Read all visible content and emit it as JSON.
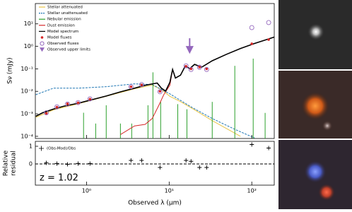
{
  "chart_data": [
    {
      "type": "line",
      "y_label": "Sν (mJy)",
      "xlim": [
        0.24,
        187
      ],
      "ylim": [
        8e-05,
        80
      ],
      "xscale": "log",
      "yscale": "log",
      "xticks": [
        1,
        10,
        100
      ],
      "yticks": [
        {
          "value": 0.0001,
          "label": "10⁻⁴"
        },
        {
          "value": 0.001,
          "label": "10⁻³"
        },
        {
          "value": 0.01,
          "label": "10⁻²"
        },
        {
          "value": 0.1,
          "label": "10⁻¹"
        },
        {
          "value": 1,
          "label": "10⁰"
        },
        {
          "value": 10,
          "label": "10¹"
        }
      ],
      "legend": "upper left",
      "series": [
        {
          "name": "Stellar attenuated",
          "color": "#e8c547",
          "style": "line",
          "x": [
            0.243,
            0.397,
            0.79,
            1.73,
            3.81,
            6.24,
            8.05,
            10.2,
            13.7,
            20.3,
            33.2,
            73.0
          ],
          "values": [
            0.0007,
            0.0015,
            0.0028,
            0.006,
            0.013,
            0.019,
            0.012,
            0.006,
            0.0035,
            0.0015,
            0.0005,
            0.0001
          ]
        },
        {
          "name": "Stellar unattenuated",
          "color": "#1f77b4",
          "style": "dashed",
          "x": [
            0.243,
            0.397,
            0.79,
            1.73,
            3.81,
            6.24,
            10.2,
            18.4,
            33.2,
            62.3,
            108
          ],
          "values": [
            0.0071,
            0.0138,
            0.0138,
            0.0161,
            0.0215,
            0.02,
            0.0077,
            0.00204,
            0.00062,
            0.000205,
            8.5e-05
          ]
        },
        {
          "name": "Nebular emission",
          "color": "#2ca02c",
          "style": "stem",
          "x": [
            0.92,
            1.29,
            1.73,
            2.57,
            3.52,
            5.54,
            6.36,
            7.89,
            12.7,
            16.4,
            33.2,
            62.3,
            104,
            145
          ],
          "values": [
            0.00112,
            0.00037,
            0.0024,
            0.00037,
            0.00037,
            0.0024,
            0.07,
            0.0034,
            0.0027,
            0.0016,
            0.0034,
            0.136,
            0.285,
            0.0011
          ]
        },
        {
          "name": "Dust emission",
          "color": "#d62728",
          "style": "line",
          "x": [
            2.57,
            3.81,
            5.12,
            6.24,
            7.5,
            8.6,
            10.2,
            11.0,
            11.9,
            13.7,
            15.7,
            17.7,
            20.3,
            24.7,
            33.2,
            49.2,
            73.0,
            108,
            188
          ],
          "values": [
            0.00012,
            0.00029,
            0.00034,
            0.00062,
            0.0024,
            0.0071,
            0.0186,
            0.094,
            0.039,
            0.052,
            0.136,
            0.102,
            0.158,
            0.118,
            0.229,
            0.44,
            0.8,
            1.34,
            2.6
          ]
        },
        {
          "name": "Model spectrum",
          "color": "#000000",
          "style": "line",
          "x": [
            0.243,
            0.295,
            0.397,
            0.532,
            0.79,
            1.17,
            1.73,
            2.57,
            3.81,
            5.12,
            6.24,
            7.16,
            8.05,
            9.06,
            10.2,
            11.0,
            11.9,
            13.7,
            15.7,
            17.7,
            20.3,
            24.7,
            33.2,
            49.2,
            73.0,
            108,
            188
          ],
          "values": [
            0.00078,
            0.00112,
            0.00162,
            0.00219,
            0.00295,
            0.00427,
            0.0062,
            0.0095,
            0.0138,
            0.0186,
            0.0214,
            0.0234,
            0.0138,
            0.0103,
            0.0251,
            0.094,
            0.039,
            0.052,
            0.136,
            0.102,
            0.158,
            0.118,
            0.229,
            0.44,
            0.8,
            1.34,
            2.6
          ]
        },
        {
          "name": "Model fluxes",
          "color": "#d62728",
          "style": "dot",
          "x": [
            0.326,
            0.438,
            0.588,
            0.79,
            1.1,
            3.45,
            4.64,
            7.74,
            16.0,
            18.4,
            23.3,
            28.4,
            100,
            160
          ],
          "values": [
            0.00105,
            0.002,
            0.0028,
            0.0031,
            0.0045,
            0.016,
            0.0195,
            0.01,
            0.13,
            0.1,
            0.12,
            0.1,
            1.3,
            2.0
          ]
        },
        {
          "name": "Observed fluxes",
          "color": "#9467bd",
          "style": "circle",
          "x": [
            0.326,
            0.438,
            0.588,
            0.79,
            1.1,
            3.45,
            4.64,
            7.74,
            16.0,
            18.4,
            23.3,
            28.4,
            100,
            160
          ],
          "values": [
            0.00112,
            0.00204,
            0.00274,
            0.00316,
            0.0046,
            0.0161,
            0.02,
            0.0096,
            0.136,
            0.094,
            0.118,
            0.094,
            6.8,
            11.4
          ]
        },
        {
          "name": "Observed upper limits",
          "color": "#9467bd",
          "style": "triangle",
          "x": [
            17.7
          ],
          "values": [
            2.3
          ]
        }
      ]
    },
    {
      "type": "scatter",
      "y_label": [
        "Relative",
        "residual"
      ],
      "x_label": "Observed λ (μm)",
      "annotation": "z = 1.02",
      "legend_label": "(Obs-Mod)/Obs",
      "xlim": [
        0.24,
        187
      ],
      "ylim": [
        -1.2,
        1.28
      ],
      "xscale": "log",
      "xticks": [
        {
          "value": 1,
          "label": "10⁰"
        },
        {
          "value": 10,
          "label": "10¹"
        },
        {
          "value": 100,
          "label": "10²"
        }
      ],
      "yticks": [
        0,
        1
      ],
      "hline": 0,
      "color": "#000000",
      "x": [
        0.326,
        0.438,
        0.588,
        0.79,
        1.1,
        3.45,
        4.64,
        7.74,
        16.0,
        18.4,
        23.3,
        28.4,
        100,
        160
      ],
      "values": [
        0.06,
        0.02,
        -0.02,
        0.02,
        0.02,
        0.2,
        0.2,
        -0.2,
        0.2,
        0.15,
        -0.2,
        -0.2,
        1.1,
        0.9
      ]
    }
  ]
}
